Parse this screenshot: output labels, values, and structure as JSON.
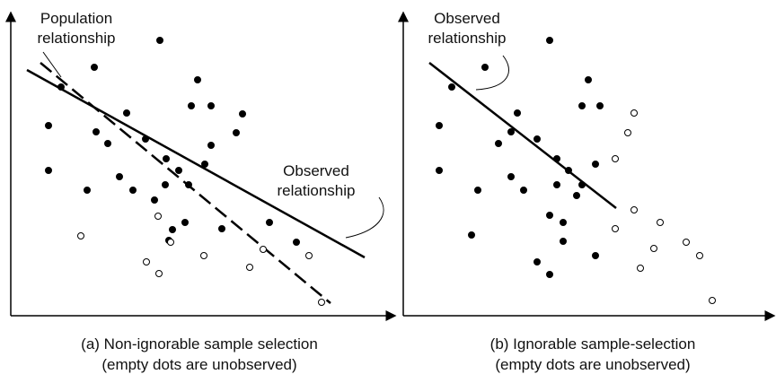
{
  "panels": [
    {
      "labels": [
        {
          "lines": [
            "Population",
            "relationship"
          ]
        },
        {
          "lines": [
            "Observed",
            "relationship"
          ]
        }
      ],
      "caption": [
        "(a) Non-ignorable sample selection",
        "(empty dots are unobserved)"
      ]
    },
    {
      "labels": [
        {
          "lines": [
            "Observed",
            "relationship"
          ]
        }
      ],
      "caption": [
        "(b) Ignorable sample-selection",
        "(empty dots are unobserved)"
      ]
    }
  ]
}
